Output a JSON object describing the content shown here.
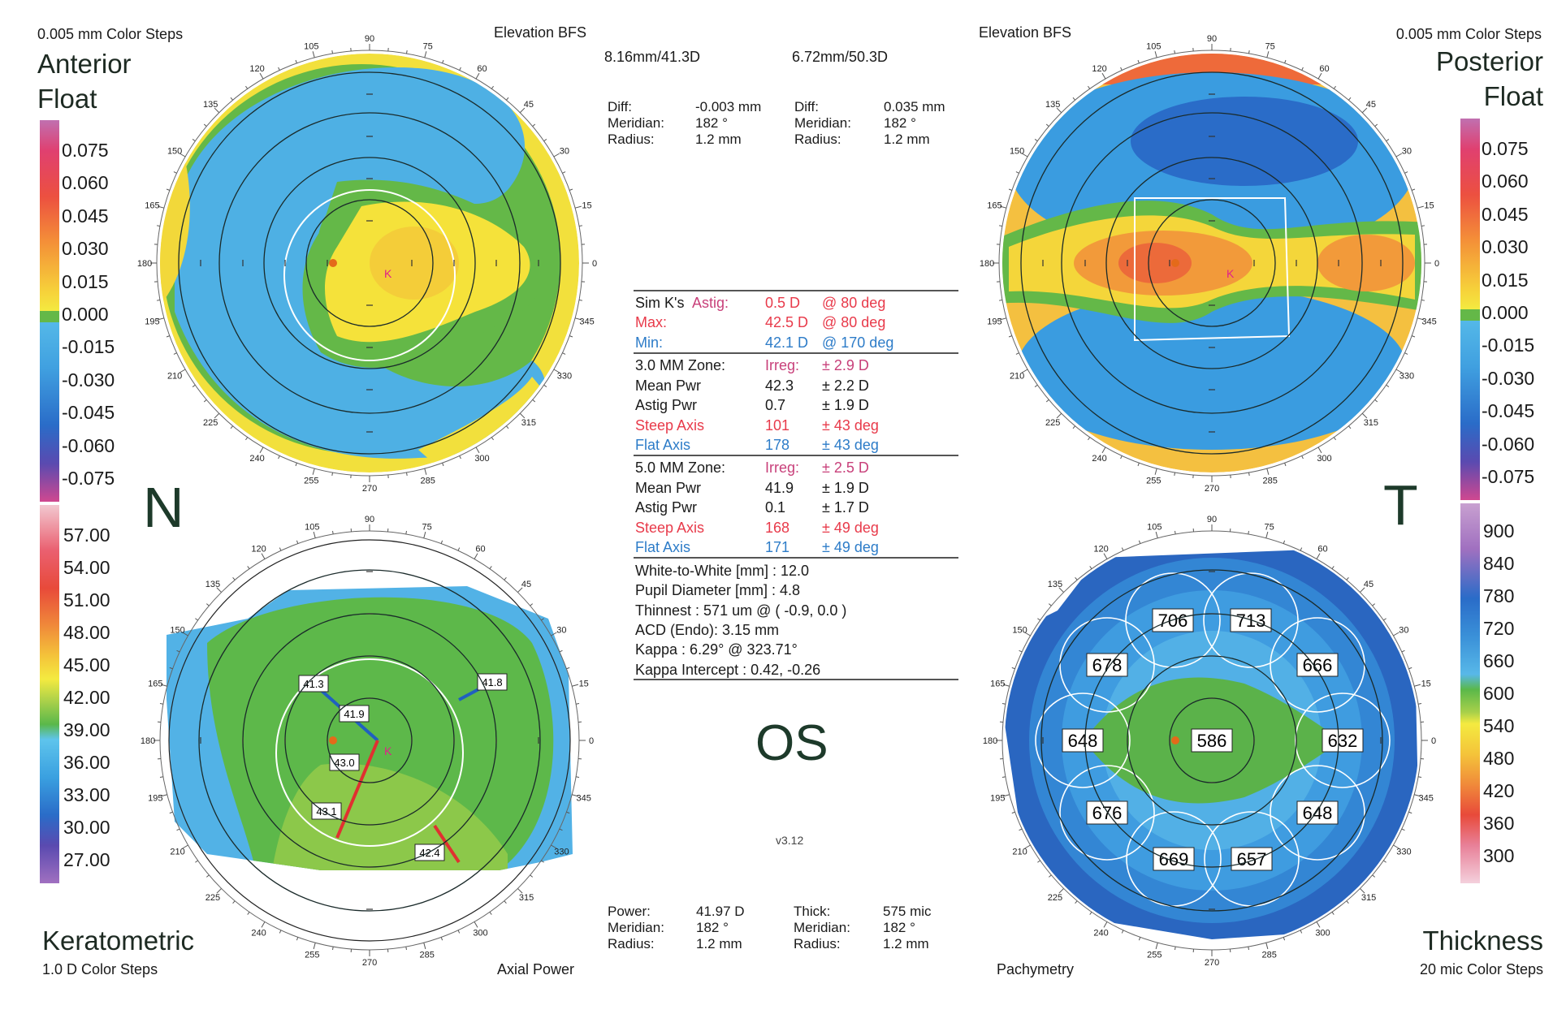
{
  "anterior": {
    "color_steps": "0.005 mm Color Steps",
    "title_line1": "Anterior",
    "title_line2": "Float",
    "map_type": "Elevation BFS",
    "bfs": "8.16mm/41.3D",
    "diff_label": "Diff:",
    "diff_value": "-0.003 mm",
    "meridian_label": "Meridian:",
    "meridian_value": "182 °",
    "radius_label": "Radius:",
    "radius_value": "1.2 mm"
  },
  "posterior": {
    "color_steps": "0.005 mm Color Steps",
    "title_line1": "Posterior",
    "title_line2": "Float",
    "map_type": "Elevation BFS",
    "bfs": "6.72mm/50.3D",
    "diff_label": "Diff:",
    "diff_value": "0.035 mm",
    "meridian_label": "Meridian:",
    "meridian_value": "182 °",
    "radius_label": "Radius:",
    "radius_value": "1.2 mm"
  },
  "keratometric": {
    "title": "Keratometric",
    "color_steps": "1.0 D Color Steps",
    "map_type": "Axial Power",
    "power_label": "Power:",
    "power_value": "41.97 D",
    "meridian_label": "Meridian:",
    "meridian_value": "182 °",
    "radius_label": "Radius:",
    "radius_value": "1.2 mm",
    "annotations": [
      "41.3",
      "41.9",
      "43.0",
      "43.1",
      "42.4",
      "41.8"
    ]
  },
  "thickness": {
    "title": "Thickness",
    "color_steps": "20 mic Color Steps",
    "map_type": "Pachymetry",
    "thick_label": "Thick:",
    "thick_value": "575 mic",
    "meridian_label": "Meridian:",
    "meridian_value": "182 °",
    "radius_label": "Radius:",
    "radius_value": "1.2 mm",
    "values": [
      "706",
      "713",
      "678",
      "666",
      "648",
      "586",
      "632",
      "676",
      "648",
      "669",
      "657"
    ]
  },
  "orientation": {
    "nasal": "N",
    "temporal": "T",
    "eye": "OS",
    "version": "v3.12"
  },
  "angle_labels": [
    "0",
    "15",
    "30",
    "45",
    "60",
    "75",
    "90",
    "105",
    "120",
    "135",
    "150",
    "165",
    "180",
    "195",
    "210",
    "225",
    "240",
    "255",
    "270",
    "285",
    "300",
    "315",
    "330",
    "345"
  ],
  "scales": {
    "elevation": [
      "0.075",
      "0.060",
      "0.045",
      "0.030",
      "0.015",
      "0.000",
      "-0.015",
      "-0.030",
      "-0.045",
      "-0.060",
      "-0.075"
    ],
    "keratometric": [
      "57.00",
      "54.00",
      "51.00",
      "48.00",
      "45.00",
      "42.00",
      "39.00",
      "36.00",
      "33.00",
      "30.00",
      "27.00"
    ],
    "thickness": [
      "900",
      "840",
      "780",
      "720",
      "660",
      "600",
      "540",
      "480",
      "420",
      "360",
      "300"
    ]
  },
  "simk": {
    "rows": [
      {
        "a": "Sim K's",
        "a2": "Astig:",
        "b": "0.5 D",
        "c": "@ 80 deg"
      },
      {
        "a": "Max:",
        "b": "42.5 D",
        "c": "@ 80 deg"
      },
      {
        "a": "Min:",
        "b": "42.1 D",
        "c": "@ 170 deg"
      }
    ],
    "zone3": [
      {
        "a": "3.0 MM Zone:",
        "b": "Irreg:",
        "c": "± 2.9 D"
      },
      {
        "a": "Mean Pwr",
        "b": "42.3",
        "c": "± 2.2 D"
      },
      {
        "a": "Astig Pwr",
        "b": "0.7",
        "c": "± 1.9 D"
      },
      {
        "a": "Steep Axis",
        "b": "101",
        "c": "± 43 deg"
      },
      {
        "a": "Flat Axis",
        "b": "178",
        "c": "± 43 deg"
      }
    ],
    "zone5": [
      {
        "a": "5.0 MM Zone:",
        "b": "Irreg:",
        "c": "± 2.5 D"
      },
      {
        "a": "Mean Pwr",
        "b": "41.9",
        "c": "± 1.9 D"
      },
      {
        "a": "Astig Pwr",
        "b": "0.1",
        "c": "± 1.7 D"
      },
      {
        "a": "Steep Axis",
        "b": "168",
        "c": "± 49 deg"
      },
      {
        "a": "Flat Axis",
        "b": "171",
        "c": "± 49 deg"
      }
    ],
    "misc": [
      "White-to-White [mm] : 12.0",
      "Pupil Diameter [mm] :  4.8",
      "Thinnest : 571 um @ ( -0.9, 0.0 )",
      "ACD (Endo): 3.15 mm",
      "Kappa : 6.29° @ 323.71°",
      "Kappa Intercept : 0.42, -0.26"
    ]
  }
}
